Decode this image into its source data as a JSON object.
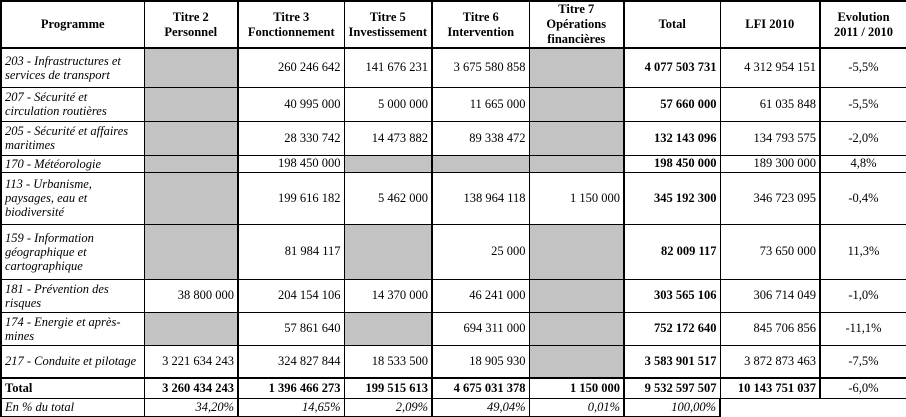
{
  "table": {
    "columns": [
      "Programme",
      "Titre 2\nPersonnel",
      "Titre 3\nFonctionnement",
      "Titre 5\nInvestissement",
      "Titre 6\nIntervention",
      "Titre 7\nOpérations\nfinancières",
      "Total",
      "LFI 2010",
      "Evolution\n2011 / 2010"
    ],
    "programs": [
      {
        "label": "203 - Infrastructures et services de transport",
        "t2": null,
        "t3": "260 246 642",
        "t5": "141 676 231",
        "t6": "3 675 580 858",
        "t7": null,
        "total": "4 077 503 731",
        "lfi": "4 312 954 151",
        "evolution": "-5,5%"
      },
      {
        "label": "207 - Sécurité et circulation routières",
        "t2": null,
        "t3": "40 995 000",
        "t5": "5 000 000",
        "t6": "11 665 000",
        "t7": null,
        "total": "57 660 000",
        "lfi": "61 035 848",
        "evolution": "-5,5%"
      },
      {
        "label": "205 - Sécurité et affaires maritimes",
        "t2": null,
        "t3": "28 330 742",
        "t5": "14 473 882",
        "t6": "89 338 472",
        "t7": null,
        "total": "132 143 096",
        "lfi": "134 793 575",
        "evolution": "-2,0%"
      },
      {
        "label": "170 - Météorologie",
        "t2": null,
        "t3": "198 450 000",
        "t5": null,
        "t6": null,
        "t7": null,
        "total": "198 450 000",
        "lfi": "189 300 000",
        "evolution": "4,8%"
      },
      {
        "label": "113 - Urbanisme, paysages, eau et biodiversité",
        "t2": null,
        "t3": "199 616 182",
        "t5": "5 462 000",
        "t6": "138 964 118",
        "t7": "1 150 000",
        "total": "345 192 300",
        "lfi": "346 723 095",
        "evolution": "-0,4%"
      },
      {
        "label": "159 - Information géographique et cartographique",
        "t2": null,
        "t3": "81 984 117",
        "t5": null,
        "t6": "25 000",
        "t7": null,
        "total": "82 009 117",
        "lfi": "73 650 000",
        "evolution": "11,3%"
      },
      {
        "label": "181 - Prévention des risques",
        "t2": "38 800 000",
        "t3": "204 154 106",
        "t5": "14 370 000",
        "t6": "46 241 000",
        "t7": null,
        "total": "303 565 106",
        "lfi": "306 714 049",
        "evolution": "-1,0%"
      },
      {
        "label": "174 - Energie et après-mines",
        "t2": null,
        "t3": "57 861 640",
        "t5": null,
        "t6": "694 311 000",
        "t7": null,
        "total": "752 172 640",
        "lfi": "845 706 856",
        "evolution": "-11,1%"
      },
      {
        "label": "217 - Conduite et pilotage",
        "t2": "3 221 634 243",
        "t3": "324 827 844",
        "t5": "18 533 500",
        "t6": "18 905 930",
        "t7": null,
        "total": "3 583 901 517",
        "lfi": "3 872 873 463",
        "evolution": "-7,5%"
      }
    ],
    "total_row": {
      "label": "Total",
      "t2": "3 260 434 243",
      "t3": "1 396 466 273",
      "t5": "199 515 613",
      "t6": "4 675 031 378",
      "t7": "1 150 000",
      "total": "9 532 597 507",
      "lfi": "10 143 751 037",
      "evolution": "-6,0%"
    },
    "percent_row": {
      "label": "En % du total",
      "t2": "34,20%",
      "t3": "14,65%",
      "t5": "2,09%",
      "t6": "49,04%",
      "t7": "0,01%",
      "total": "100,00%"
    }
  },
  "colors": {
    "empty_cell_gray": "#c3c3c3",
    "border_black": "#000000",
    "background": "#ffffff"
  }
}
